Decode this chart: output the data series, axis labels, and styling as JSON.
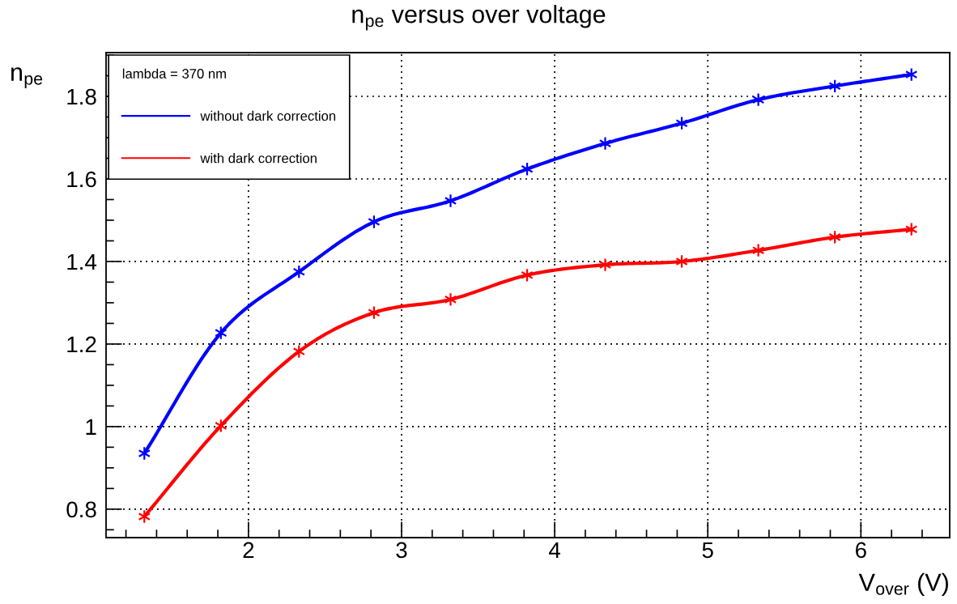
{
  "chart_data": {
    "type": "line",
    "title": "n$_{pe}$ versus over voltage",
    "xlabel": "V$_{over}$ (V)",
    "ylabel": "n$_{pe}$",
    "legend_title": "lambda = 370 nm",
    "x": [
      1.32,
      1.82,
      2.33,
      2.82,
      3.32,
      3.82,
      4.33,
      4.83,
      5.33,
      5.83,
      6.33
    ],
    "series": [
      {
        "name": "without dark correction",
        "color": "#0000ff",
        "values": [
          0.935,
          1.227,
          1.375,
          1.496,
          1.547,
          1.624,
          1.686,
          1.735,
          1.792,
          1.825,
          1.853
        ]
      },
      {
        "name": "with dark correction",
        "color": "#ff0000",
        "values": [
          0.782,
          1.002,
          1.182,
          1.276,
          1.308,
          1.367,
          1.392,
          1.4,
          1.427,
          1.459,
          1.478
        ]
      }
    ],
    "xlim": [
      1.07,
      6.58
    ],
    "xticks": [
      2,
      3,
      4,
      5,
      6
    ],
    "ylim": [
      0.731,
      1.906
    ],
    "yticks": [
      0.8,
      1,
      1.2,
      1.4,
      1.6,
      1.8
    ],
    "grid": true,
    "legend": "top left",
    "marker": "cross",
    "line_style": "solid"
  }
}
